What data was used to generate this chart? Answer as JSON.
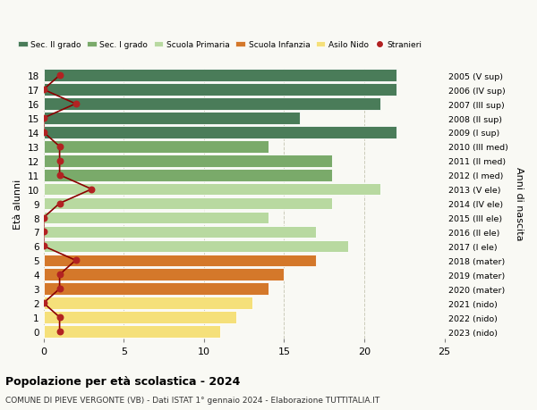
{
  "ages": [
    0,
    1,
    2,
    3,
    4,
    5,
    6,
    7,
    8,
    9,
    10,
    11,
    12,
    13,
    14,
    15,
    16,
    17,
    18
  ],
  "bar_values": [
    11,
    12,
    13,
    14,
    15,
    17,
    19,
    17,
    14,
    18,
    21,
    18,
    18,
    14,
    22,
    16,
    21,
    22,
    22
  ],
  "stranieri": [
    1,
    1,
    0,
    1,
    1,
    2,
    0,
    0,
    0,
    1,
    3,
    1,
    1,
    1,
    0,
    0,
    2,
    0,
    1
  ],
  "right_labels": [
    "2023 (nido)",
    "2022 (nido)",
    "2021 (nido)",
    "2020 (mater)",
    "2019 (mater)",
    "2018 (mater)",
    "2017 (I ele)",
    "2016 (II ele)",
    "2015 (III ele)",
    "2014 (IV ele)",
    "2013 (V ele)",
    "2012 (I med)",
    "2011 (II med)",
    "2010 (III med)",
    "2009 (I sup)",
    "2008 (II sup)",
    "2007 (III sup)",
    "2006 (IV sup)",
    "2005 (V sup)"
  ],
  "bar_colors": [
    "#f5e07a",
    "#f5e07a",
    "#f5e07a",
    "#d4782a",
    "#d4782a",
    "#d4782a",
    "#b8d9a0",
    "#b8d9a0",
    "#b8d9a0",
    "#b8d9a0",
    "#b8d9a0",
    "#7aaa6a",
    "#7aaa6a",
    "#7aaa6a",
    "#4a7c59",
    "#4a7c59",
    "#4a7c59",
    "#4a7c59",
    "#4a7c59"
  ],
  "legend_labels": [
    "Sec. II grado",
    "Sec. I grado",
    "Scuola Primaria",
    "Scuola Infanzia",
    "Asilo Nido",
    "Stranieri"
  ],
  "legend_colors": [
    "#4a7c59",
    "#7aaa6a",
    "#b8d9a0",
    "#d4782a",
    "#f5e07a",
    "#b22222"
  ],
  "stranieri_color": "#b22222",
  "stranieri_line_color": "#8b0000",
  "ylabel": "Età alunni",
  "right_ylabel": "Anni di nascita",
  "title": "Popolazione per età scolastica - 2024",
  "subtitle": "COMUNE DI PIEVE VERGONTE (VB) - Dati ISTAT 1° gennaio 2024 - Elaborazione TUTTITALIA.IT",
  "xlim": [
    0,
    25
  ],
  "xticks": [
    0,
    5,
    10,
    15,
    20,
    25
  ],
  "background_color": "#f9f9f4",
  "grid_color": "#ccccbb"
}
